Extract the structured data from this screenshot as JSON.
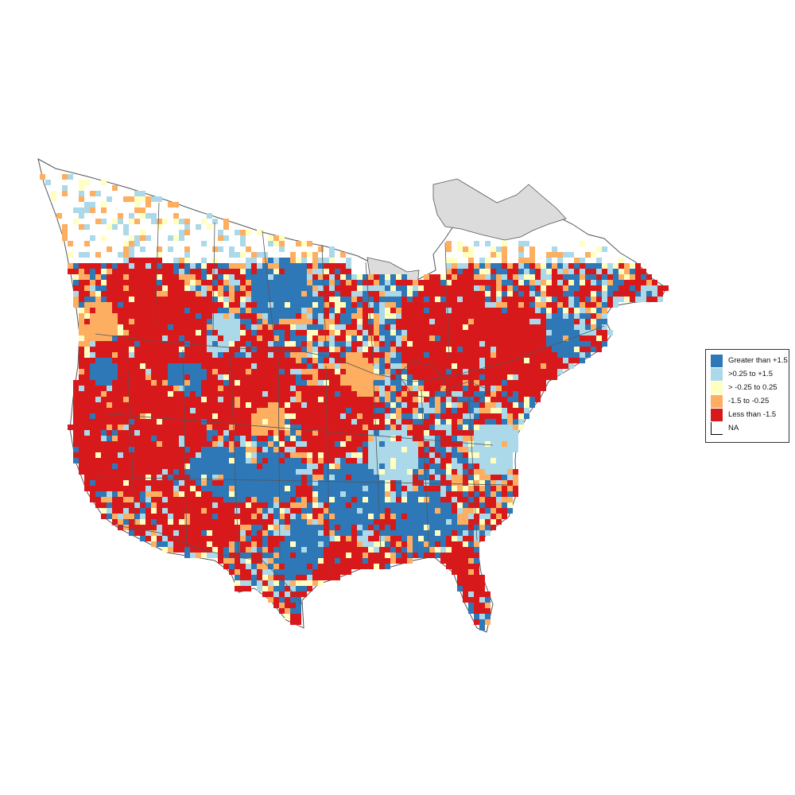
{
  "map": {
    "background": "#ffffff",
    "border_color": "#555555",
    "no_data_fill": "#dcdcdc"
  },
  "legend": {
    "items": [
      {
        "label": "Greater than +1.5",
        "color": "#2e78b7"
      },
      {
        "label": ">0.25 to +1.5",
        "color": "#abd9e9"
      },
      {
        "label": "> -0.25 to 0.25",
        "color": "#ffffbf"
      },
      {
        "label": "-1.5 to -0.25",
        "color": "#fdae61"
      },
      {
        "label": "Less than -1.5",
        "color": "#d7191c"
      },
      {
        "label": "NA",
        "color": "#ffffff"
      }
    ]
  }
}
